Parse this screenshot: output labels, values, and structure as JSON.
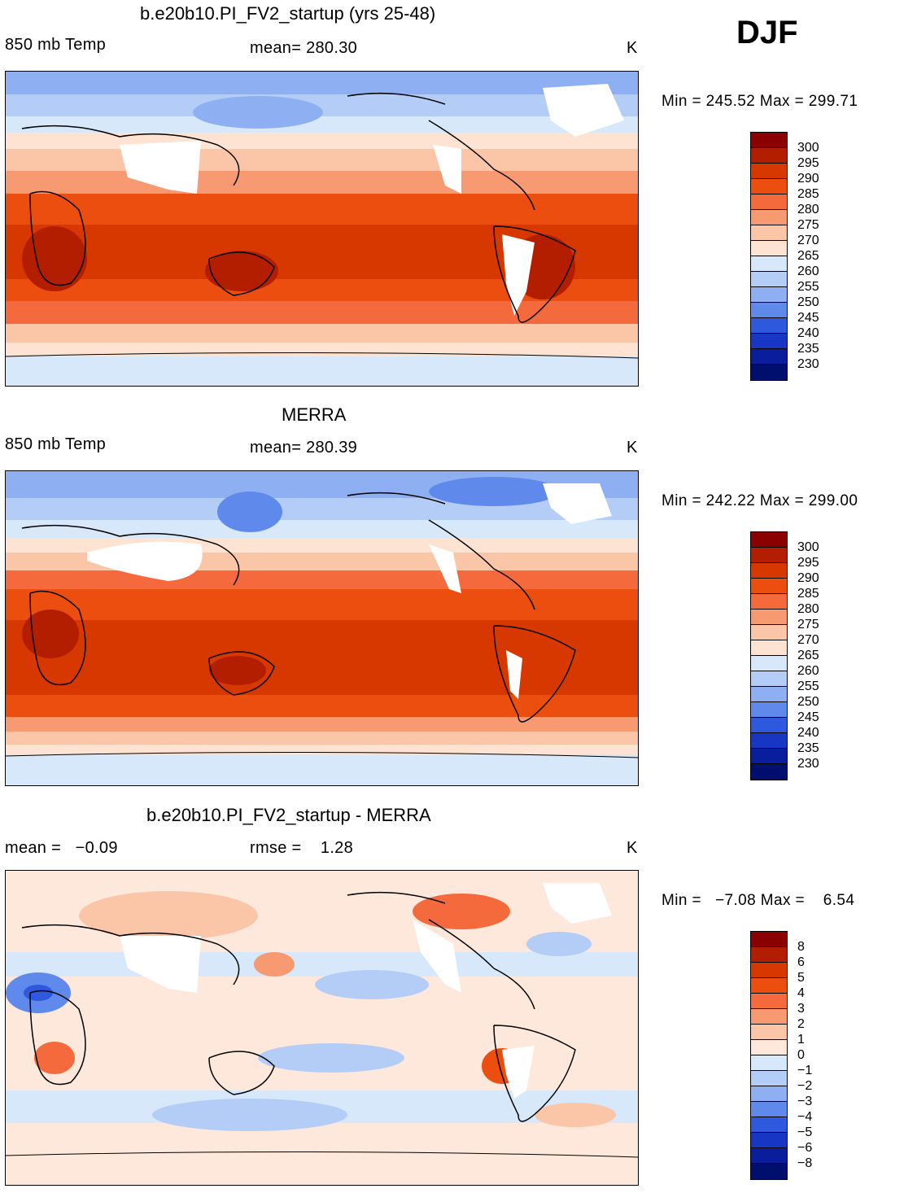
{
  "season": "DJF",
  "panels": [
    {
      "title": "b.e20b10.PI_FV2_startup (yrs 25-48)",
      "left_label": "850 mb Temp",
      "center_label": "mean= 280.30",
      "units": "K",
      "minmax": "Min = 245.52 Max = 299.71",
      "colorbar": {
        "labels": [
          "300",
          "295",
          "290",
          "285",
          "280",
          "275",
          "270",
          "265",
          "260",
          "255",
          "250",
          "245",
          "240",
          "235",
          "230"
        ],
        "colors": [
          "#8b0000",
          "#b31d00",
          "#d73800",
          "#ec4e10",
          "#f46a3c",
          "#f79a72",
          "#fbc6a8",
          "#fee3d2",
          "#d8e8fb",
          "#b3cdf7",
          "#8eb0f2",
          "#5f8aeb",
          "#2e59de",
          "#1736c4",
          "#0a1d9c",
          "#000f6e"
        ]
      }
    },
    {
      "title": "MERRA",
      "left_label": "850 mb Temp",
      "center_label": "mean= 280.39",
      "units": "K",
      "minmax": "Min = 242.22 Max = 299.00",
      "colorbar": {
        "labels": [
          "300",
          "295",
          "290",
          "285",
          "280",
          "275",
          "270",
          "265",
          "260",
          "255",
          "250",
          "245",
          "240",
          "235",
          "230"
        ],
        "colors": [
          "#8b0000",
          "#b31d00",
          "#d73800",
          "#ec4e10",
          "#f46a3c",
          "#f79a72",
          "#fbc6a8",
          "#fee3d2",
          "#d8e8fb",
          "#b3cdf7",
          "#8eb0f2",
          "#5f8aeb",
          "#2e59de",
          "#1736c4",
          "#0a1d9c",
          "#000f6e"
        ]
      }
    },
    {
      "title": "b.e20b10.PI_FV2_startup - MERRA",
      "left_label": "mean =   −0.09",
      "center_label": "rmse =    1.28",
      "units": "K",
      "minmax": "Min =   −7.08 Max =    6.54",
      "colorbar": {
        "labels": [
          "8",
          "6",
          "5",
          "4",
          "3",
          "2",
          "1",
          "0",
          "−1",
          "−2",
          "−3",
          "−4",
          "−5",
          "−6",
          "−8"
        ],
        "colors": [
          "#8b0000",
          "#b31d00",
          "#d73800",
          "#ec4e10",
          "#f46a3c",
          "#f79a72",
          "#fbc6a8",
          "#fee8dc",
          "#d8e8fb",
          "#b3cdf7",
          "#8eb0f2",
          "#5f8aeb",
          "#2e59de",
          "#1736c4",
          "#0a1d9c",
          "#000f6e"
        ]
      }
    }
  ]
}
